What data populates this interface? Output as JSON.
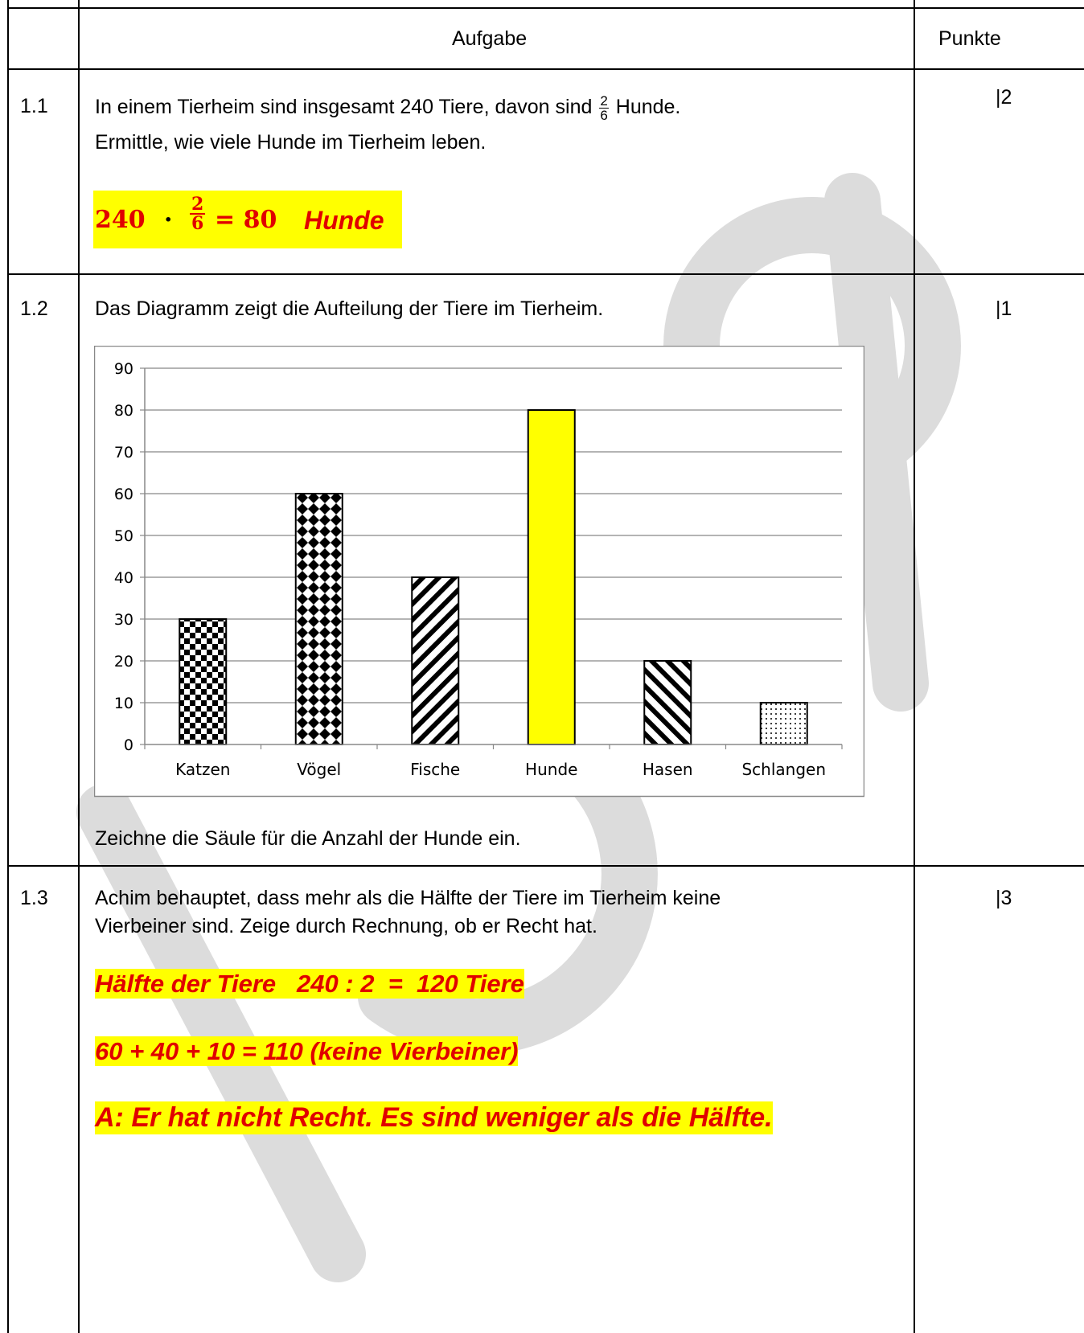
{
  "header": {
    "aufgabe": "Aufgabe",
    "punkte": "Punkte"
  },
  "tasks": [
    {
      "num": "1.1",
      "text_a": "In einem Tierheim sind insgesamt 240 Tiere, davon sind",
      "frac_num": "2",
      "frac_den": "6",
      "text_b": "Hunde.",
      "line2": "Ermittle, wie viele Hunde im Tierheim leben.",
      "points": "|2",
      "solution": {
        "a": "240",
        "dot": "·",
        "num": "2",
        "den": "6",
        "eq": "= 80",
        "word": "Hunde"
      }
    },
    {
      "num": "1.2",
      "text": "Das Diagramm zeigt die Aufteilung der Tiere im Tierheim.",
      "points": "|1",
      "footer": "Zeichne die Säule für die Anzahl der Hunde ein."
    },
    {
      "num": "1.3",
      "line1": "Achim behauptet, dass mehr als die Hälfte der Tiere im Tierheim keine",
      "line2": "Vierbeiner sind. Zeige durch Rechnung, ob er Recht hat.",
      "points": "|3",
      "solutions": [
        "Hälfte der Tiere   240 : 2  =  120 Tiere",
        "60 + 40 + 10 = 110 (keine Vierbeiner)",
        "A: Er hat nicht Recht. Es sind weniger als die Hälfte."
      ]
    }
  ],
  "chart_data": {
    "type": "bar",
    "categories": [
      "Katzen",
      "Vögel",
      "Fische",
      "Hunde",
      "Hasen",
      "Schlangen"
    ],
    "values": [
      30,
      60,
      40,
      80,
      20,
      10
    ],
    "ylim": [
      0,
      90
    ],
    "yticks": [
      0,
      10,
      20,
      30,
      40,
      50,
      60,
      70,
      80,
      90
    ],
    "grid": true,
    "patterns": [
      "checker",
      "diamond",
      "diag-right",
      "solid-yellow",
      "diag-left",
      "dots"
    ],
    "colors": {
      "hunde": "#ffff00"
    }
  }
}
